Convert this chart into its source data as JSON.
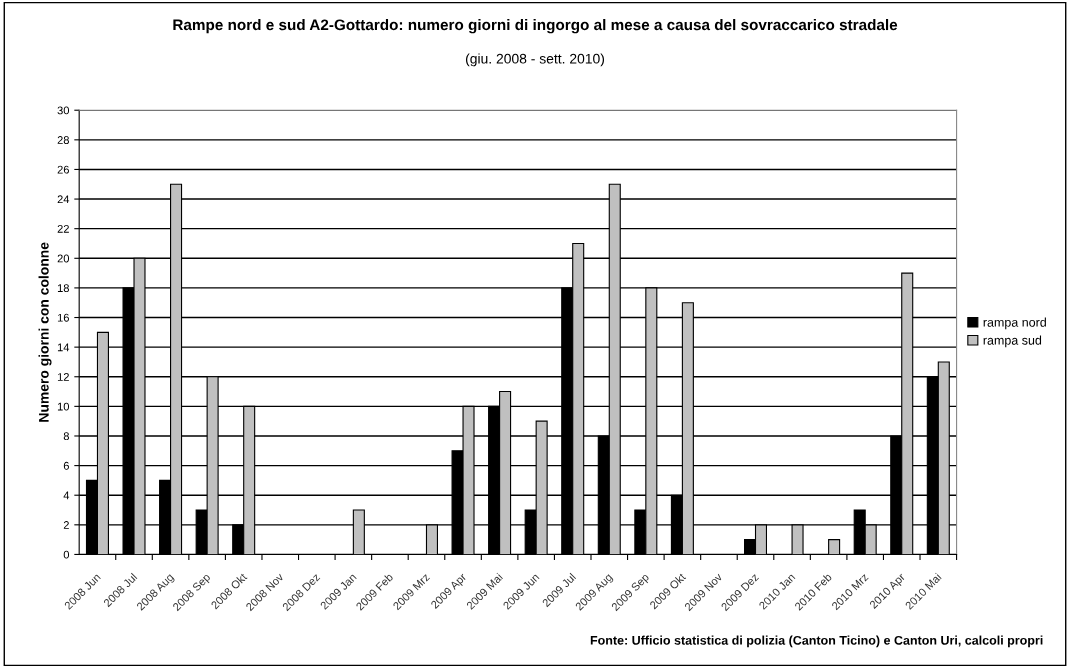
{
  "chart_data": {
    "type": "bar",
    "title": "Rampe nord e sud A2-Gottardo: numero giorni di ingorgo al mese a causa del sovraccarico stradale",
    "subtitle": "(giu. 2008 - sett. 2010)",
    "ylabel": "Numero giorni con colonne",
    "categories": [
      "2008 Jun",
      "2008 Jul",
      "2008 Aug",
      "2008 Sep",
      "2008 Okt",
      "2008 Nov",
      "2008 Dez",
      "2009 Jan",
      "2009 Feb",
      "2009 Mrz",
      "2009 Apr",
      "2009 Mai",
      "2009 Jun",
      "2009 Jul",
      "2009 Aug",
      "2009 Sep",
      "2009 Okt",
      "2009 Nov",
      "2009 Dez",
      "2010 Jan",
      "2010 Feb",
      "2010 Mrz",
      "2010 Apr",
      "2010 Mai"
    ],
    "series": [
      {
        "name": "rampa nord",
        "color": "#000000",
        "values": [
          5,
          18,
          5,
          3,
          2,
          0,
          0,
          0,
          0,
          0,
          7,
          10,
          3,
          18,
          8,
          3,
          4,
          0,
          1,
          0,
          0,
          3,
          8,
          12
        ]
      },
      {
        "name": "rampa sud",
        "color": "#c0c0c0",
        "values": [
          15,
          20,
          25,
          12,
          10,
          0,
          0,
          3,
          0,
          2,
          10,
          11,
          9,
          21,
          25,
          18,
          17,
          0,
          2,
          2,
          1,
          2,
          19,
          13
        ]
      }
    ],
    "ylim": [
      0,
      30
    ],
    "yticks": [
      0,
      2,
      4,
      6,
      8,
      10,
      12,
      14,
      16,
      18,
      20,
      22,
      24,
      26,
      28,
      30
    ],
    "grid": "y",
    "legend": "right",
    "annotations": [
      "Fonte: Ufficio statistica di polizia (Canton Ticino) e Canton Uri, calcoli propri"
    ]
  }
}
